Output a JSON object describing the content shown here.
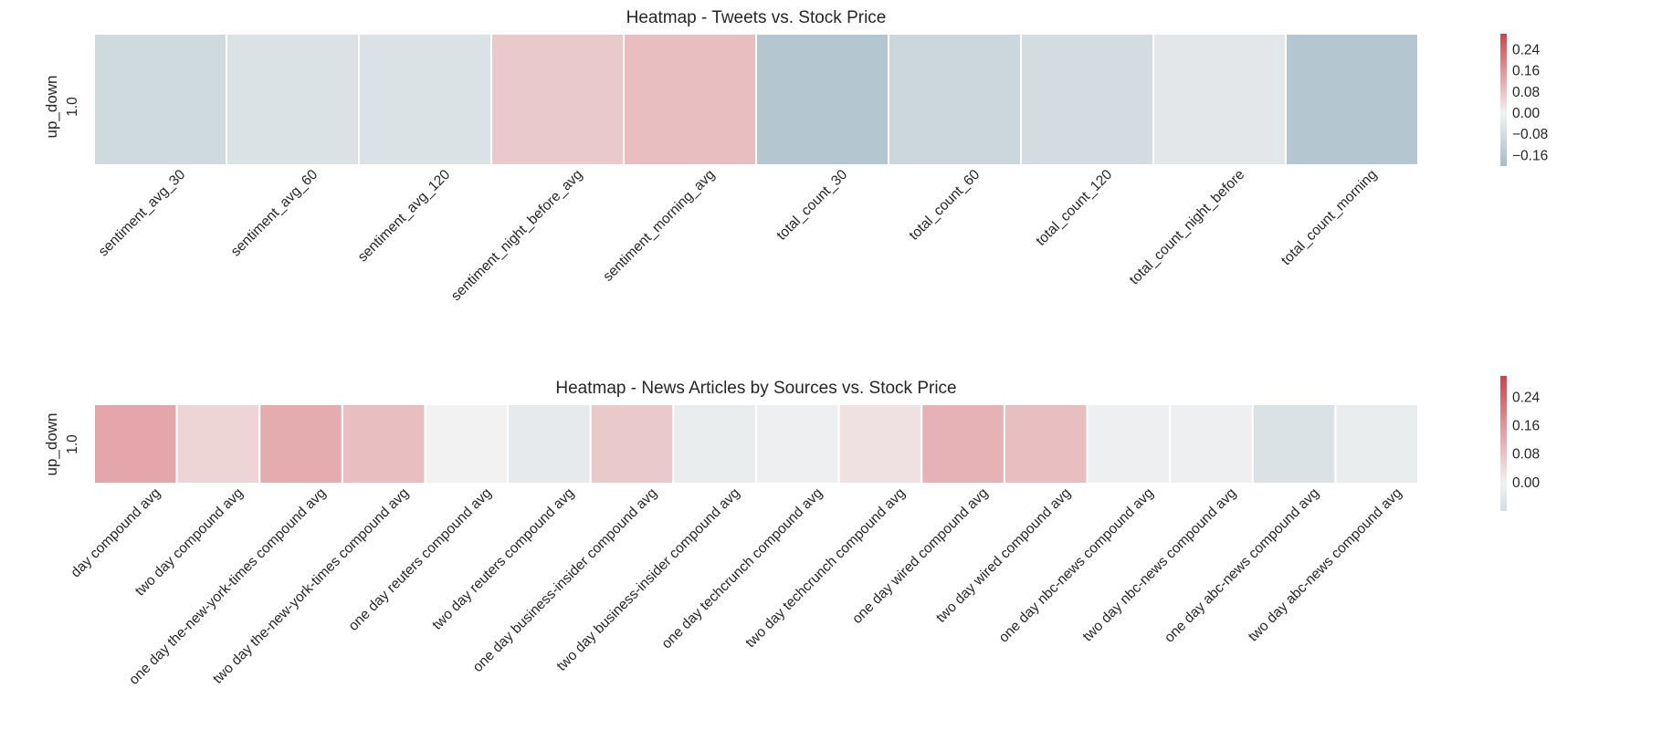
{
  "chart_data": [
    {
      "type": "heatmap",
      "title": "Heatmap - Tweets vs. Stock Price",
      "ylabel": "up_down",
      "rows": [
        "1.0"
      ],
      "columns": [
        "sentiment_avg_30",
        "sentiment_avg_60",
        "sentiment_avg_120",
        "sentiment_night_before_avg",
        "sentiment_morning_avg",
        "total_count_30",
        "total_count_60",
        "total_count_120",
        "total_count_night_before",
        "total_count_morning"
      ],
      "values": [
        [
          -0.09,
          -0.06,
          -0.06,
          0.07,
          0.09,
          -0.16,
          -0.1,
          -0.08,
          -0.04,
          -0.16
        ]
      ],
      "color_range": [
        -0.2,
        0.3
      ],
      "colorbar_ticks": [
        0.24,
        0.16,
        0.08,
        0.0,
        -0.08,
        -0.16
      ],
      "colorbar_tick_labels": [
        "0.24",
        "0.16",
        "0.08",
        "0.00",
        "−0.08",
        "−0.16"
      ],
      "colormap": {
        "negative": "#7ea1b2",
        "neutral": "#f2f2f2",
        "positive": "#d1434b"
      },
      "grid": false
    },
    {
      "type": "heatmap",
      "title": "Heatmap - News Articles by Sources vs. Stock Price",
      "ylabel": "up_down",
      "rows": [
        "1.0"
      ],
      "columns": [
        "day compound avg",
        "two day compound avg",
        "one day the-new-york-times compound avg",
        "two day the-new-york-times compound avg",
        "one day reuters compound avg",
        "two day reuters compound avg",
        "one day business-insider compound avg",
        "two day business-insider compound avg",
        "one day techcrunch compound avg",
        "two day techcrunch compound avg",
        "one day wired compound avg",
        "two day wired compound avg",
        "one day nbc-news compound avg",
        "two day nbc-news compound avg",
        "one day abc-news compound avg",
        "two day abc-news compound avg"
      ],
      "values": [
        [
          0.13,
          0.05,
          0.12,
          0.09,
          0.0,
          -0.03,
          0.07,
          -0.02,
          -0.01,
          0.03,
          0.11,
          0.09,
          -0.01,
          -0.01,
          -0.06,
          -0.02
        ]
      ],
      "color_range": [
        -0.08,
        0.3
      ],
      "colorbar_ticks": [
        0.24,
        0.16,
        0.08,
        0.0
      ],
      "colorbar_tick_labels": [
        "0.24",
        "0.16",
        "0.08",
        "0.00"
      ],
      "colormap": {
        "negative": "#7ea1b2",
        "neutral": "#f2f2f2",
        "positive": "#d1434b"
      },
      "grid": false
    }
  ]
}
